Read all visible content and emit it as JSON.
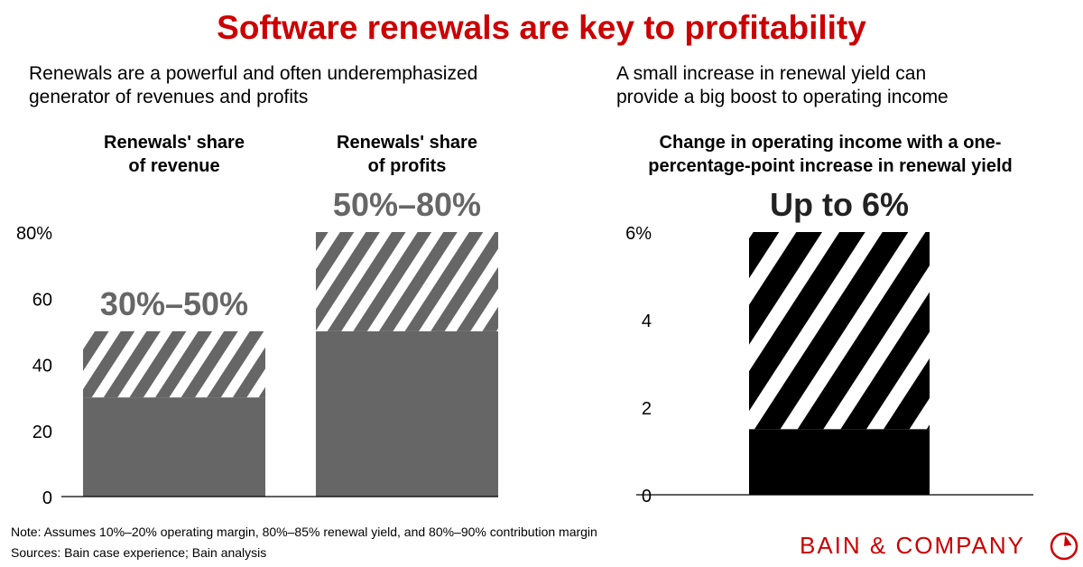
{
  "title": "Software renewals are key to profitability",
  "left_panel": {
    "subtitle_line1": "Renewals are a powerful and often underemphasized",
    "subtitle_line2": "generator of revenues and profits"
  },
  "right_panel": {
    "subtitle_line1": "A small increase in renewal yield can",
    "subtitle_line2": "provide a big boost to operating income"
  },
  "chart_data": [
    {
      "type": "bar",
      "stacked": true,
      "categories": [
        "Renewals' share of revenue",
        "Renewals' share of profits"
      ],
      "category_lines": [
        [
          "Renewals' share",
          "of revenue"
        ],
        [
          "Renewals' share",
          "of profits"
        ]
      ],
      "series": [
        {
          "style": "solid",
          "values": [
            30,
            50
          ]
        },
        {
          "style": "hatched",
          "values": [
            20,
            30
          ]
        }
      ],
      "data_labels": [
        "30%–50%",
        "50%–80%"
      ],
      "ylim": [
        0,
        80
      ],
      "yticks": [
        0,
        20,
        40,
        60,
        80
      ],
      "ytick_labels": [
        "0",
        "20",
        "40",
        "60",
        "80%"
      ],
      "grid": false,
      "color": "#666666"
    },
    {
      "type": "bar",
      "stacked": true,
      "title_line1": "Change in operating income with a one-",
      "title_line2": "percentage-point increase in renewal yield",
      "categories": [
        ""
      ],
      "series": [
        {
          "style": "solid",
          "values": [
            1.5
          ]
        },
        {
          "style": "hatched",
          "values": [
            4.5
          ]
        }
      ],
      "data_labels": [
        "Up to 6%"
      ],
      "ylim": [
        0,
        6
      ],
      "yticks": [
        0,
        2,
        4,
        6
      ],
      "ytick_labels": [
        "0",
        "2",
        "4",
        "6%"
      ],
      "grid": false,
      "color": "#000000"
    }
  ],
  "footer": {
    "note": "Note: Assumes 10%–20% operating margin, 80%–85% renewal yield, and 80%–90% contribution margin",
    "sources": "Sources: Bain case experience; Bain analysis",
    "logo_text": "BAIN & COMPANY"
  },
  "colors": {
    "title": "#cc0000",
    "brand": "#cc0000"
  }
}
